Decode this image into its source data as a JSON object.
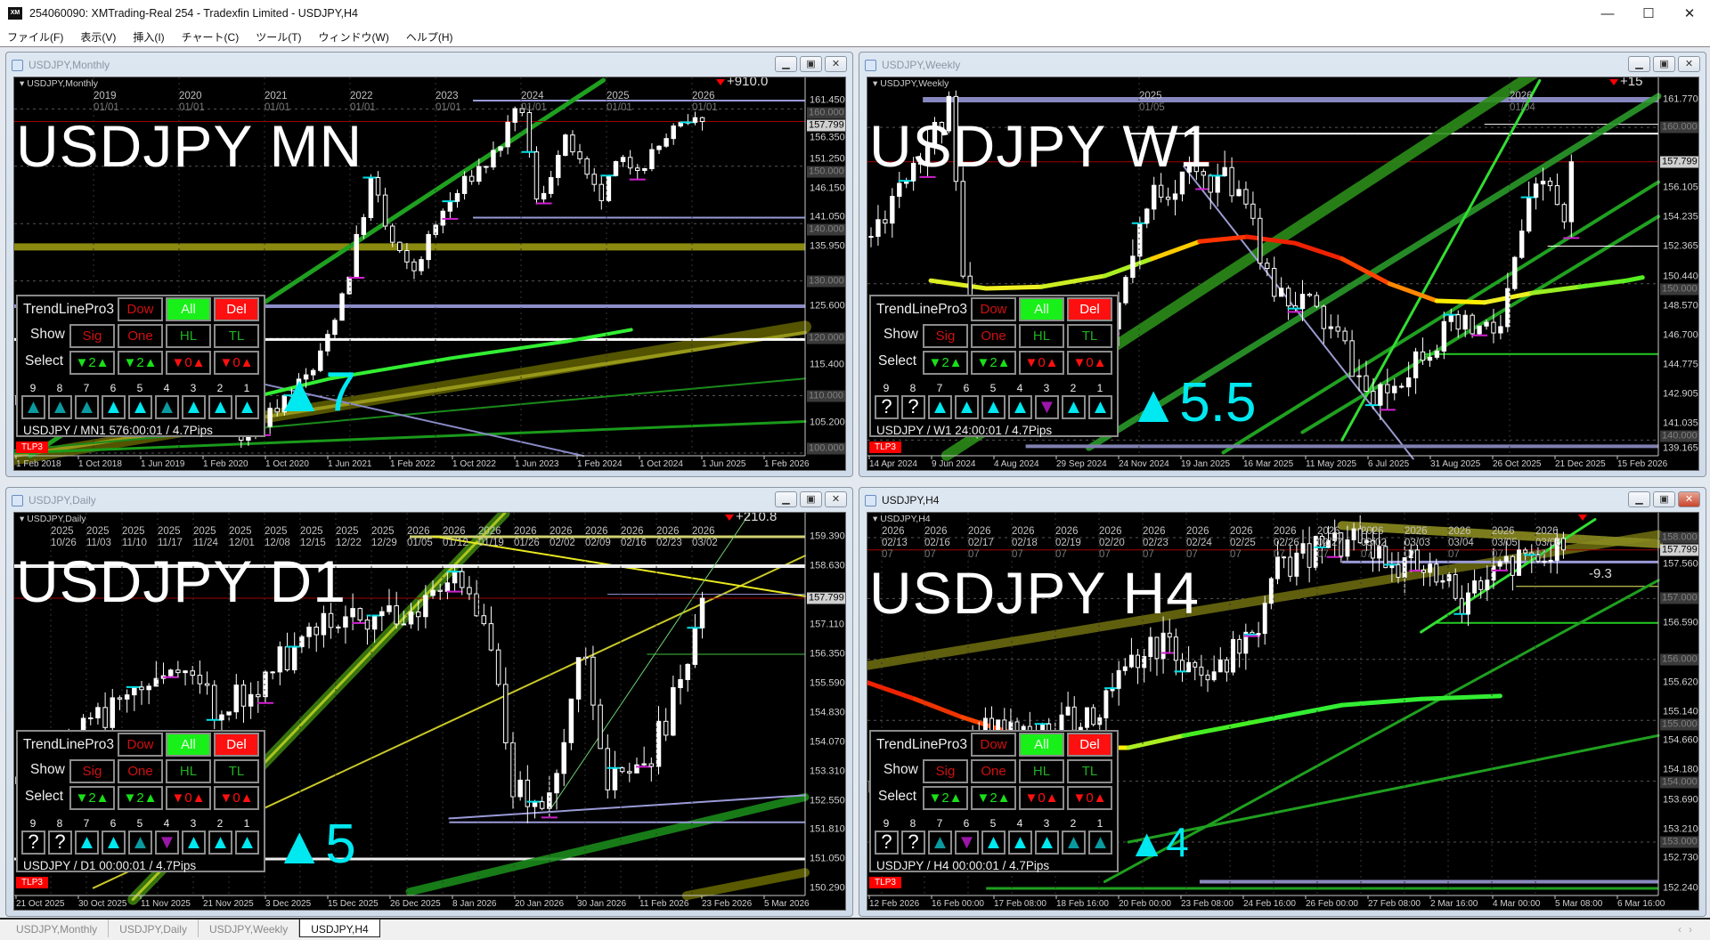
{
  "app": {
    "title": "254060090: XMTrading-Real 254 - Tradexfin Limited - USDJPY,H4",
    "icon": "xm-logo-icon",
    "icon_text": "XM",
    "controls": [
      "minimize",
      "maximize",
      "close"
    ],
    "menu": [
      "ファイル(F)",
      "表示(V)",
      "挿入(I)",
      "チャート(C)",
      "ツール(T)",
      "ウィンドウ(W)",
      "ヘルプ(H)"
    ]
  },
  "colors": {
    "signal_cyan": "#00e8f0",
    "signal_dark": "#0a9aa0",
    "signal_purple": "#9b17a8",
    "button_green": "#19f019",
    "button_red": "#ff1010",
    "current_price_line": "#a00000"
  },
  "charts": [
    {
      "window_title": "USDJPY,Monthly",
      "active": false,
      "chart_label": "USDJPY,Monthly",
      "big_title": "USDJPY MN",
      "profit_text": "+910.0",
      "current_price": "157.799",
      "price_labels": [
        "161.450",
        "156.350",
        "151.250",
        "146.150",
        "141.050",
        "135.950",
        "125.600",
        "115.400",
        "105.200"
      ],
      "round_levels": [
        "160.000",
        "150.000",
        "140.000",
        "130.000",
        "120.000",
        "110.000",
        "100.000"
      ],
      "top_years": [
        "2019",
        "2020",
        "2021",
        "2022",
        "2023",
        "2024",
        "2025",
        "2026"
      ],
      "top_dates": [
        "01/01",
        "01/01",
        "01/01",
        "01/01",
        "01/01",
        "01/01",
        "01/01",
        "01/01"
      ],
      "time_labels": [
        "1 Feb 2018",
        "1 Oct 2018",
        "1 Jun 2019",
        "1 Feb 2020",
        "1 Oct 2020",
        "1 Jun 2021",
        "1 Feb 2022",
        "1 Oct 2022",
        "1 Jun 2023",
        "1 Feb 2024",
        "1 Oct 2024",
        "1 Jun 2025",
        "1 Feb 2026"
      ],
      "signal": {
        "direction": "up",
        "value": "7"
      },
      "badge": "TLP3",
      "panel": {
        "footer": "USDJPY / MN1 576:00:01 / 4.7Pips",
        "slots": [
          {
            "num": "9",
            "state": "up",
            "shade": "dark"
          },
          {
            "num": "8",
            "state": "up",
            "shade": "dark"
          },
          {
            "num": "7",
            "state": "up",
            "shade": "dark"
          },
          {
            "num": "6",
            "state": "up",
            "shade": "bright"
          },
          {
            "num": "5",
            "state": "up",
            "shade": "bright"
          },
          {
            "num": "4",
            "state": "up",
            "shade": "dark"
          },
          {
            "num": "3",
            "state": "up",
            "shade": "bright"
          },
          {
            "num": "2",
            "state": "up",
            "shade": "bright"
          },
          {
            "num": "1",
            "state": "up",
            "shade": "bright"
          }
        ]
      }
    },
    {
      "window_title": "USDJPY,Weekly",
      "active": false,
      "chart_label": "USDJPY,Weekly",
      "big_title": "USDJPY W1",
      "profit_text": "+15",
      "current_price": "157.799",
      "price_labels": [
        "161.770",
        "156.105",
        "154.235",
        "152.365",
        "150.440",
        "148.570",
        "146.700",
        "144.775",
        "142.905",
        "141.035",
        "139.165"
      ],
      "round_levels": [
        "160.000",
        "150.000",
        "140.000"
      ],
      "top_years": [
        "2025",
        "2026"
      ],
      "top_dates": [
        "01/05",
        "01/04"
      ],
      "time_labels": [
        "14 Apr 2024",
        "9 Jun 2024",
        "4 Aug 2024",
        "29 Sep 2024",
        "24 Nov 2024",
        "19 Jan 2025",
        "16 Mar 2025",
        "11 May 2025",
        "6 Jul 2025",
        "31 Aug 2025",
        "26 Oct 2025",
        "21 Dec 2025",
        "15 Feb 2026"
      ],
      "signal": {
        "direction": "up",
        "value": "5.5"
      },
      "badge": "TLP3",
      "panel": {
        "footer": "USDJPY / W1 24:00:01 / 4.7Pips",
        "slots": [
          {
            "num": "9",
            "state": "unknown",
            "label": "?"
          },
          {
            "num": "8",
            "state": "unknown",
            "label": "?"
          },
          {
            "num": "7",
            "state": "up",
            "shade": "bright"
          },
          {
            "num": "6",
            "state": "up",
            "shade": "bright"
          },
          {
            "num": "5",
            "state": "up",
            "shade": "bright"
          },
          {
            "num": "4",
            "state": "up",
            "shade": "bright"
          },
          {
            "num": "3",
            "state": "down",
            "shade": "purple"
          },
          {
            "num": "2",
            "state": "up",
            "shade": "bright"
          },
          {
            "num": "1",
            "state": "up",
            "shade": "bright"
          }
        ]
      }
    },
    {
      "window_title": "USDJPY,Daily",
      "active": false,
      "chart_label": "USDJPY,Daily",
      "big_title": "USDJPY D1",
      "profit_text": "+210.8",
      "current_price": "157.799",
      "price_labels": [
        "159.390",
        "158.630",
        "157.110",
        "156.350",
        "155.590",
        "154.830",
        "154.070",
        "153.310",
        "152.550",
        "151.810",
        "151.050",
        "150.290"
      ],
      "round_levels": [],
      "top_years": [
        "2025",
        "2025",
        "2025",
        "2025",
        "2025",
        "2025",
        "2025",
        "2025",
        "2025",
        "2025",
        "2026",
        "2026",
        "2026",
        "2026",
        "2026",
        "2026",
        "2026",
        "2026",
        "2026"
      ],
      "top_dates": [
        "10/26",
        "11/03",
        "11/10",
        "11/17",
        "11/24",
        "12/01",
        "12/08",
        "12/15",
        "12/22",
        "12/29",
        "01/05",
        "01/12",
        "01/19",
        "01/26",
        "02/02",
        "02/09",
        "02/16",
        "02/23",
        "03/02"
      ],
      "time_labels": [
        "21 Oct 2025",
        "30 Oct 2025",
        "11 Nov 2025",
        "21 Nov 2025",
        "3 Dec 2025",
        "15 Dec 2025",
        "26 Dec 2025",
        "8 Jan 2026",
        "20 Jan 2026",
        "30 Jan 2026",
        "11 Feb 2026",
        "23 Feb 2026",
        "5 Mar 2026"
      ],
      "signal": {
        "direction": "up",
        "value": "5"
      },
      "badge": "TLP3",
      "panel": {
        "footer": "USDJPY / D1 00:00:01 / 4.7Pips",
        "slots": [
          {
            "num": "9",
            "state": "unknown",
            "label": "?"
          },
          {
            "num": "8",
            "state": "unknown",
            "label": "?"
          },
          {
            "num": "7",
            "state": "up",
            "shade": "bright"
          },
          {
            "num": "6",
            "state": "up",
            "shade": "bright"
          },
          {
            "num": "5",
            "state": "up",
            "shade": "dark"
          },
          {
            "num": "4",
            "state": "down",
            "shade": "purple"
          },
          {
            "num": "3",
            "state": "up",
            "shade": "bright"
          },
          {
            "num": "2",
            "state": "up",
            "shade": "bright"
          },
          {
            "num": "1",
            "state": "up",
            "shade": "bright"
          }
        ]
      }
    },
    {
      "window_title": "USDJPY,H4",
      "active": true,
      "chart_label": "USDJPY,H4",
      "big_title": "USDJPY H4",
      "profit_text": "-9.3",
      "current_price": "157.799",
      "price_labels": [
        "157.560",
        "156.590",
        "155.620",
        "155.140",
        "154.660",
        "154.180",
        "153.690",
        "153.210",
        "152.730",
        "152.240"
      ],
      "round_levels": [
        "158.000",
        "157.000",
        "156.000",
        "155.000",
        "154.000",
        "153.000"
      ],
      "top_years": [
        "2026",
        "2026",
        "2026",
        "2026",
        "2026",
        "2026",
        "2026",
        "2026",
        "2026",
        "2026",
        "2026",
        "2026",
        "2026",
        "2026",
        "2026",
        "2026"
      ],
      "top_dates": [
        "02/13",
        "02/16",
        "02/17",
        "02/18",
        "02/19",
        "02/20",
        "02/23",
        "02/24",
        "02/25",
        "02/26",
        "02/27",
        "03/02",
        "03/03",
        "03/04",
        "03/05",
        "03/06"
      ],
      "top_sub": "07",
      "time_labels": [
        "12 Feb 2026",
        "16 Feb 00:00",
        "17 Feb 08:00",
        "18 Feb 16:00",
        "20 Feb 00:00",
        "23 Feb 08:00",
        "24 Feb 16:00",
        "26 Feb 00:00",
        "27 Feb 08:00",
        "2 Mar 16:00",
        "4 Mar 00:00",
        "5 Mar 08:00",
        "6 Mar 16:00"
      ],
      "signal": {
        "direction": "up",
        "value": "4"
      },
      "badge": "TLP3",
      "panel": {
        "footer": "USDJPY / H4 00:00:01 / 4.7Pips",
        "slots": [
          {
            "num": "9",
            "state": "unknown",
            "label": "?"
          },
          {
            "num": "8",
            "state": "unknown",
            "label": "?"
          },
          {
            "num": "7",
            "state": "up",
            "shade": "dark"
          },
          {
            "num": "6",
            "state": "down",
            "shade": "purple"
          },
          {
            "num": "5",
            "state": "up",
            "shade": "bright"
          },
          {
            "num": "4",
            "state": "up",
            "shade": "bright"
          },
          {
            "num": "3",
            "state": "up",
            "shade": "bright"
          },
          {
            "num": "2",
            "state": "up",
            "shade": "dark"
          },
          {
            "num": "1",
            "state": "up",
            "shade": "dark"
          }
        ]
      }
    }
  ],
  "panel_common": {
    "name": "TrendLinePro3",
    "dow": "Dow",
    "all": "All",
    "del": "Del",
    "show_label": "Show",
    "show_buttons": [
      "Sig",
      "One",
      "HL",
      "TL"
    ],
    "select_label": "Select",
    "select": [
      {
        "count": "2",
        "color": "green"
      },
      {
        "count": "2",
        "color": "green"
      },
      {
        "count": "0",
        "color": "red"
      },
      {
        "count": "0",
        "color": "red"
      }
    ]
  },
  "tabs": [
    {
      "label": "USDJPY,Monthly",
      "active": false
    },
    {
      "label": "USDJPY,Daily",
      "active": false
    },
    {
      "label": "USDJPY,Weekly",
      "active": false
    },
    {
      "label": "USDJPY,H4",
      "active": true
    }
  ]
}
